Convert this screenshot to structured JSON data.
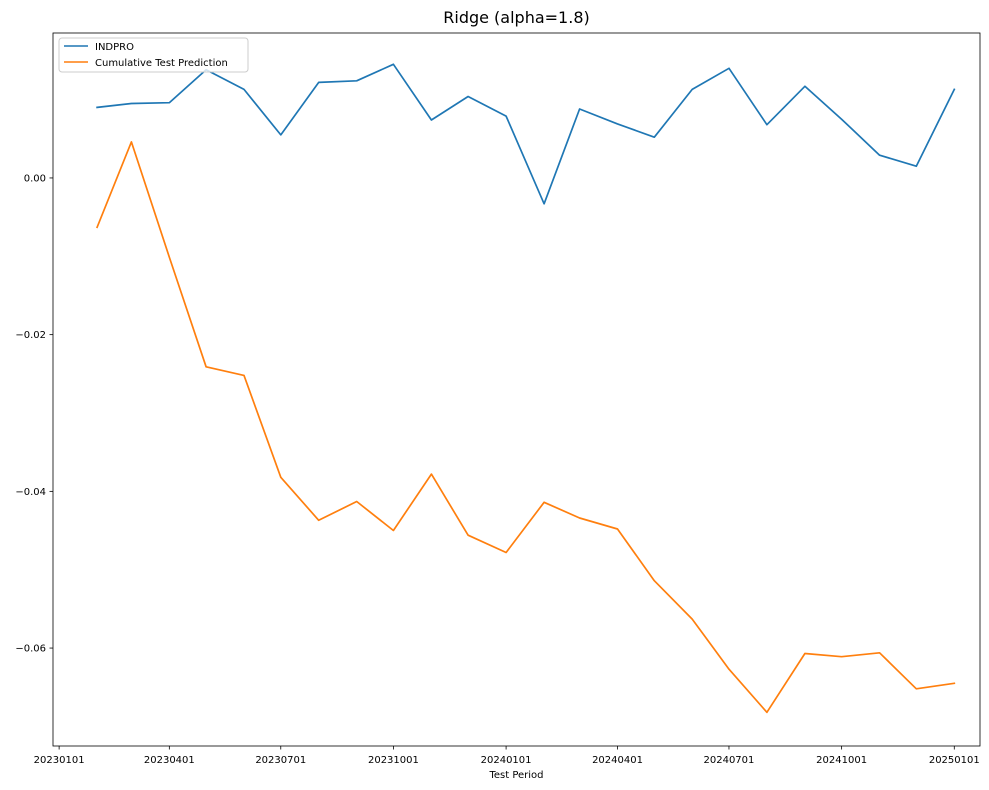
{
  "chart_data": {
    "type": "line",
    "title": "Ridge (alpha=1.8)",
    "xlabel": "Test Period",
    "ylabel": "",
    "x": [
      "2023-02-01",
      "2023-03-01",
      "2023-04-01",
      "2023-05-01",
      "2023-06-01",
      "2023-07-01",
      "2023-08-01",
      "2023-09-01",
      "2023-10-01",
      "2023-11-01",
      "2023-12-01",
      "2024-01-01",
      "2024-02-01",
      "2024-03-01",
      "2024-04-01",
      "2024-05-01",
      "2024-06-01",
      "2024-07-01",
      "2024-08-01",
      "2024-09-01",
      "2024-10-01",
      "2024-11-01",
      "2024-12-01",
      "2025-01-01"
    ],
    "xlim": [
      "2022-12-27",
      "2025-01-22"
    ],
    "ylim": [
      -0.0725,
      0.0185
    ],
    "x_ticks": [
      {
        "date": "2023-01-01",
        "label": "20230101"
      },
      {
        "date": "2023-04-01",
        "label": "20230401"
      },
      {
        "date": "2023-07-01",
        "label": "20230701"
      },
      {
        "date": "2023-10-01",
        "label": "20231001"
      },
      {
        "date": "2024-01-01",
        "label": "20240101"
      },
      {
        "date": "2024-04-01",
        "label": "20240401"
      },
      {
        "date": "2024-07-01",
        "label": "20240701"
      },
      {
        "date": "2024-10-01",
        "label": "20241001"
      },
      {
        "date": "2025-01-01",
        "label": "20250101"
      }
    ],
    "y_ticks": [
      {
        "value": 0.0,
        "label": "0.00"
      },
      {
        "value": -0.02,
        "label": "−0.02"
      },
      {
        "value": -0.04,
        "label": "−0.04"
      },
      {
        "value": -0.06,
        "label": "−0.06"
      }
    ],
    "grid": false,
    "legend_position": "top-left",
    "series": [
      {
        "name": "INDPRO",
        "color": "#1f77b4",
        "values": [
          0.009,
          0.0095,
          0.0096,
          0.0138,
          0.0113,
          0.0055,
          0.0122,
          0.0124,
          0.0145,
          0.0074,
          0.0104,
          0.0079,
          -0.0033,
          0.0088,
          0.0069,
          0.0052,
          0.0113,
          0.014,
          0.0068,
          0.0117,
          0.0075,
          0.0029,
          0.0015,
          0.0113
        ]
      },
      {
        "name": "Cumulative Test Prediction",
        "color": "#ff7f0e",
        "values": [
          -0.0063,
          0.0046,
          -0.0101,
          -0.0241,
          -0.0252,
          -0.0382,
          -0.0437,
          -0.0413,
          -0.045,
          -0.0378,
          -0.0456,
          -0.0478,
          -0.0414,
          -0.0434,
          -0.0448,
          -0.0514,
          -0.0563,
          -0.0627,
          -0.0682,
          -0.0607,
          -0.0611,
          -0.0606,
          -0.0652,
          -0.0645
        ]
      }
    ]
  }
}
